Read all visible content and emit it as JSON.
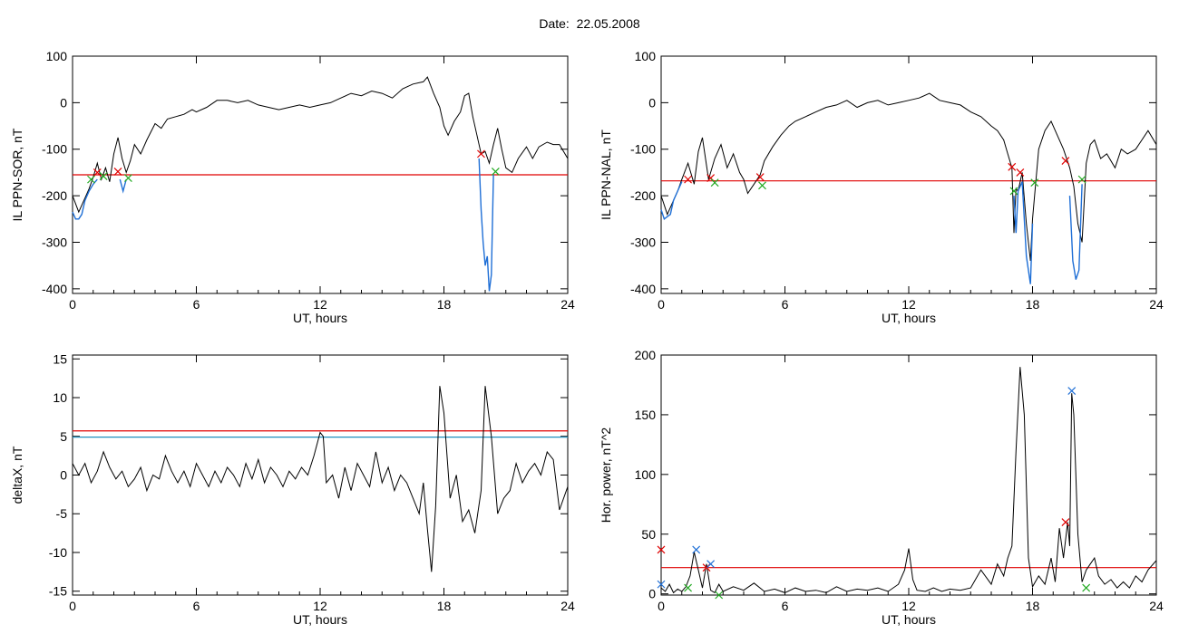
{
  "date_title": "Date:  22.05.2008",
  "chart_data": [
    {
      "type": "line",
      "xlabel": "UT, hours",
      "ylabel": "IL PPN-SOR, nT",
      "xlim": [
        0,
        24
      ],
      "ylim": [
        -410,
        100
      ],
      "xticks": [
        0,
        6,
        12,
        18,
        24
      ],
      "yticks": [
        -400,
        -300,
        -200,
        -100,
        0,
        100
      ],
      "ytick_labels": [
        "-400",
        "-300",
        "-200",
        "-100",
        "0",
        "100"
      ],
      "threshold_lines": [
        {
          "y": -155,
          "color": "#e00000"
        }
      ],
      "series": [
        {
          "color": "#000000",
          "x": [
            0,
            0.3,
            0.6,
            0.8,
            1,
            1.2,
            1.4,
            1.6,
            1.8,
            2,
            2.2,
            2.4,
            2.6,
            2.8,
            3,
            3.3,
            3.6,
            4,
            4.3,
            4.6,
            5,
            5.4,
            5.8,
            6,
            6.5,
            7,
            7.5,
            8,
            8.5,
            9,
            9.5,
            10,
            10.5,
            11,
            11.5,
            12,
            12.5,
            13,
            13.5,
            14,
            14.5,
            15,
            15.5,
            16,
            16.5,
            17,
            17.2,
            17.5,
            17.8,
            18,
            18.2,
            18.5,
            18.8,
            19,
            19.2,
            19.4,
            19.6,
            19.8,
            20,
            20.2,
            20.4,
            20.6,
            20.8,
            21,
            21.3,
            21.6,
            22,
            22.3,
            22.6,
            23,
            23.3,
            23.6,
            24
          ],
          "y": [
            -200,
            -235,
            -205,
            -185,
            -160,
            -130,
            -165,
            -140,
            -170,
            -110,
            -75,
            -120,
            -150,
            -125,
            -90,
            -110,
            -80,
            -45,
            -55,
            -35,
            -30,
            -25,
            -15,
            -20,
            -10,
            5,
            5,
            0,
            5,
            -5,
            -10,
            -15,
            -10,
            -5,
            -10,
            -5,
            0,
            10,
            20,
            15,
            25,
            20,
            10,
            30,
            40,
            45,
            55,
            20,
            -10,
            -50,
            -70,
            -40,
            -20,
            15,
            20,
            -30,
            -70,
            -110,
            -105,
            -130,
            -90,
            -55,
            -100,
            -140,
            -150,
            -120,
            -95,
            -120,
            -95,
            -85,
            -90,
            -90,
            -120
          ]
        },
        {
          "color": "#1f6fd6",
          "x": [
            0,
            0.15,
            0.3,
            0.45,
            0.6,
            0.8,
            1,
            1.2
          ],
          "y": [
            -235,
            -250,
            -250,
            -240,
            -210,
            -190,
            -175,
            -165
          ]
        },
        {
          "color": "#1f6fd6",
          "x": [
            2.3,
            2.45,
            2.6
          ],
          "y": [
            -165,
            -190,
            -165
          ]
        },
        {
          "color": "#1f6fd6",
          "x": [
            19.7,
            19.8,
            19.9,
            20,
            20.1,
            20.2,
            20.3,
            20.4
          ],
          "y": [
            -120,
            -230,
            -300,
            -350,
            -330,
            -405,
            -370,
            -155
          ]
        }
      ],
      "markers": [
        {
          "x": 1.2,
          "y": -150,
          "color": "#e00000"
        },
        {
          "x": 2.2,
          "y": -148,
          "color": "#e00000"
        },
        {
          "x": 19.8,
          "y": -110,
          "color": "#e00000"
        },
        {
          "x": 0.9,
          "y": -165,
          "color": "#22aa22"
        },
        {
          "x": 1.5,
          "y": -158,
          "color": "#22aa22"
        },
        {
          "x": 2.7,
          "y": -162,
          "color": "#22aa22"
        },
        {
          "x": 20.5,
          "y": -148,
          "color": "#22aa22"
        }
      ]
    },
    {
      "type": "line",
      "xlabel": "UT, hours",
      "ylabel": "IL PPN-NAL, nT",
      "xlim": [
        0,
        24
      ],
      "ylim": [
        -410,
        100
      ],
      "xticks": [
        0,
        6,
        12,
        18,
        24
      ],
      "yticks": [
        -400,
        -300,
        -200,
        -100,
        0,
        100
      ],
      "ytick_labels": [
        "-400",
        "-300",
        "-200",
        "-100",
        "0",
        "100"
      ],
      "threshold_lines": [
        {
          "y": -168,
          "color": "#e00000"
        }
      ],
      "series": [
        {
          "color": "#000000",
          "x": [
            0,
            0.3,
            0.6,
            0.8,
            1,
            1.3,
            1.6,
            1.8,
            2,
            2.3,
            2.6,
            2.9,
            3.2,
            3.5,
            3.8,
            4,
            4.2,
            4.5,
            4.8,
            5,
            5.4,
            5.8,
            6.2,
            6.5,
            7,
            7.5,
            8,
            8.5,
            9,
            9.5,
            10,
            10.5,
            11,
            11.5,
            12,
            12.5,
            13,
            13.5,
            14,
            14.5,
            15,
            15.5,
            16,
            16.3,
            16.6,
            16.8,
            17,
            17.1,
            17.2,
            17.3,
            17.5,
            17.7,
            17.9,
            18,
            18.3,
            18.6,
            18.9,
            19.2,
            19.5,
            19.8,
            20,
            20.2,
            20.4,
            20.6,
            20.8,
            21,
            21.3,
            21.6,
            22,
            22.3,
            22.6,
            23,
            23.3,
            23.6,
            24
          ],
          "y": [
            -200,
            -240,
            -210,
            -190,
            -165,
            -130,
            -175,
            -105,
            -75,
            -165,
            -120,
            -90,
            -140,
            -110,
            -150,
            -165,
            -195,
            -175,
            -155,
            -125,
            -95,
            -70,
            -50,
            -40,
            -30,
            -20,
            -10,
            -5,
            5,
            -10,
            0,
            5,
            -5,
            0,
            5,
            10,
            20,
            5,
            0,
            -5,
            -20,
            -30,
            -50,
            -60,
            -80,
            -110,
            -140,
            -280,
            -185,
            -190,
            -150,
            -260,
            -340,
            -250,
            -100,
            -60,
            -40,
            -70,
            -100,
            -140,
            -180,
            -260,
            -300,
            -130,
            -90,
            -80,
            -120,
            -110,
            -140,
            -100,
            -110,
            -100,
            -80,
            -60,
            -90
          ]
        },
        {
          "color": "#1f6fd6",
          "x": [
            0,
            0.15,
            0.3,
            0.45,
            0.6,
            0.8,
            1
          ],
          "y": [
            -230,
            -250,
            -245,
            -240,
            -210,
            -190,
            -170
          ]
        },
        {
          "color": "#1f6fd6",
          "x": [
            17.1,
            17.2,
            17.3,
            17.5,
            17.7,
            17.9,
            18
          ],
          "y": [
            -200,
            -280,
            -190,
            -170,
            -330,
            -390,
            -260
          ]
        },
        {
          "color": "#1f6fd6",
          "x": [
            19.8,
            19.95,
            20.1,
            20.25,
            20.4
          ],
          "y": [
            -200,
            -340,
            -380,
            -360,
            -175
          ]
        }
      ],
      "markers": [
        {
          "x": 1.3,
          "y": -165,
          "color": "#e00000"
        },
        {
          "x": 2.4,
          "y": -162,
          "color": "#e00000"
        },
        {
          "x": 4.8,
          "y": -160,
          "color": "#e00000"
        },
        {
          "x": 17.0,
          "y": -138,
          "color": "#e00000"
        },
        {
          "x": 17.4,
          "y": -150,
          "color": "#e00000"
        },
        {
          "x": 19.6,
          "y": -125,
          "color": "#e00000"
        },
        {
          "x": 2.6,
          "y": -172,
          "color": "#22aa22"
        },
        {
          "x": 4.9,
          "y": -178,
          "color": "#22aa22"
        },
        {
          "x": 17.1,
          "y": -190,
          "color": "#22aa22"
        },
        {
          "x": 18.1,
          "y": -172,
          "color": "#22aa22"
        },
        {
          "x": 20.4,
          "y": -165,
          "color": "#22aa22"
        }
      ]
    },
    {
      "type": "line",
      "xlabel": "UT, hours",
      "ylabel": "deltaX, nT",
      "xlim": [
        0,
        24
      ],
      "ylim": [
        -15.5,
        15.5
      ],
      "xticks": [
        0,
        6,
        12,
        18,
        24
      ],
      "yticks": [
        -15,
        -10,
        -5,
        0,
        5,
        10,
        15
      ],
      "ytick_labels": [
        "-15",
        "-10",
        "-5",
        "0",
        "5",
        "10",
        "15"
      ],
      "threshold_lines": [
        {
          "y": 5.7,
          "color": "#e00000"
        },
        {
          "y": 4.9,
          "color": "#1f8fbf"
        }
      ],
      "series": [
        {
          "color": "#000000",
          "x": [
            0,
            0.3,
            0.6,
            0.9,
            1.2,
            1.5,
            1.8,
            2.1,
            2.4,
            2.7,
            3,
            3.3,
            3.6,
            3.9,
            4.2,
            4.5,
            4.8,
            5.1,
            5.4,
            5.7,
            6,
            6.3,
            6.6,
            6.9,
            7.2,
            7.5,
            7.8,
            8.1,
            8.4,
            8.7,
            9,
            9.3,
            9.6,
            9.9,
            10.2,
            10.5,
            10.8,
            11.1,
            11.4,
            11.7,
            12,
            12.15,
            12.3,
            12.6,
            12.9,
            13.2,
            13.5,
            13.8,
            14.1,
            14.4,
            14.7,
            15,
            15.3,
            15.6,
            15.9,
            16.2,
            16.5,
            16.8,
            17,
            17.2,
            17.4,
            17.6,
            17.8,
            18,
            18.3,
            18.6,
            18.9,
            19.2,
            19.5,
            19.8,
            20,
            20.3,
            20.6,
            20.9,
            21.2,
            21.5,
            21.8,
            22.1,
            22.4,
            22.7,
            23,
            23.3,
            23.6,
            24
          ],
          "y": [
            1.5,
            0,
            1.5,
            -1,
            0.5,
            3,
            1,
            -0.5,
            0.5,
            -1.5,
            -0.5,
            1,
            -2,
            0,
            -0.5,
            2.5,
            0.5,
            -1,
            0.5,
            -1.5,
            1.5,
            0,
            -1.5,
            0.5,
            -1,
            1,
            0,
            -1.5,
            1.5,
            -0.5,
            2,
            -1,
            1,
            0,
            -1.5,
            0.5,
            -0.5,
            1,
            0,
            2.5,
            5.5,
            5,
            -1,
            0,
            -3,
            1,
            -2,
            1.5,
            0,
            -1.5,
            3,
            -1,
            1,
            -2,
            0,
            -1,
            -3,
            -5,
            -1,
            -7,
            -12.5,
            -4,
            11.5,
            8,
            -3,
            0,
            -6,
            -4.5,
            -7.5,
            -2,
            11.5,
            5,
            -5,
            -3,
            -2,
            1.5,
            -1,
            0.5,
            1.5,
            0,
            3,
            2,
            -4.5,
            -1.5
          ]
        }
      ],
      "markers": []
    },
    {
      "type": "line",
      "xlabel": "UT, hours",
      "ylabel": "Hor. power, nT^2",
      "xlim": [
        0,
        24
      ],
      "ylim": [
        -1,
        200
      ],
      "xticks": [
        0,
        6,
        12,
        18,
        24
      ],
      "yticks": [
        0,
        50,
        100,
        150,
        200
      ],
      "ytick_labels": [
        "0",
        "50",
        "100",
        "150",
        "200"
      ],
      "threshold_lines": [
        {
          "y": 22,
          "color": "#e00000"
        }
      ],
      "series": [
        {
          "color": "#000000",
          "x": [
            0,
            0.2,
            0.4,
            0.6,
            0.8,
            1,
            1.2,
            1.4,
            1.6,
            1.8,
            2,
            2.2,
            2.4,
            2.6,
            2.8,
            3,
            3.5,
            4,
            4.5,
            5,
            5.5,
            6,
            6.5,
            7,
            7.5,
            8,
            8.5,
            9,
            9.5,
            10,
            10.5,
            11,
            11.5,
            11.8,
            12,
            12.2,
            12.4,
            12.8,
            13.2,
            13.6,
            14,
            14.5,
            15,
            15.5,
            16,
            16.3,
            16.6,
            16.8,
            17,
            17.2,
            17.4,
            17.6,
            17.8,
            18,
            18.3,
            18.6,
            18.9,
            19.1,
            19.3,
            19.5,
            19.7,
            19.8,
            19.9,
            20,
            20.2,
            20.4,
            20.6,
            20.8,
            21,
            21.2,
            21.5,
            21.8,
            22.1,
            22.4,
            22.7,
            23,
            23.3,
            23.6,
            24
          ],
          "y": [
            5,
            2,
            8,
            1,
            4,
            2,
            6,
            15,
            35,
            20,
            5,
            25,
            3,
            1,
            8,
            2,
            6,
            3,
            9,
            2,
            4,
            1,
            5,
            2,
            3,
            1,
            6,
            2,
            4,
            3,
            5,
            2,
            8,
            20,
            38,
            12,
            3,
            2,
            5,
            2,
            4,
            3,
            5,
            20,
            8,
            25,
            15,
            30,
            40,
            120,
            190,
            150,
            30,
            6,
            15,
            8,
            30,
            10,
            55,
            30,
            60,
            40,
            168,
            150,
            50,
            10,
            20,
            25,
            30,
            15,
            8,
            12,
            5,
            10,
            5,
            15,
            10,
            20,
            28
          ]
        }
      ],
      "markers": [
        {
          "x": 0.0,
          "y": 37,
          "color": "#e00000"
        },
        {
          "x": 2.2,
          "y": 22,
          "color": "#e00000"
        },
        {
          "x": 19.6,
          "y": 60,
          "color": "#e00000"
        },
        {
          "x": 0.0,
          "y": 8,
          "color": "#1f6fd6"
        },
        {
          "x": 1.7,
          "y": 37,
          "color": "#1f6fd6"
        },
        {
          "x": 2.4,
          "y": 25,
          "color": "#1f6fd6"
        },
        {
          "x": 19.9,
          "y": 170,
          "color": "#1f6fd6"
        },
        {
          "x": 1.3,
          "y": 5,
          "color": "#22aa22"
        },
        {
          "x": 2.8,
          "y": -1,
          "color": "#22aa22"
        },
        {
          "x": 20.6,
          "y": 5,
          "color": "#22aa22"
        }
      ]
    }
  ]
}
